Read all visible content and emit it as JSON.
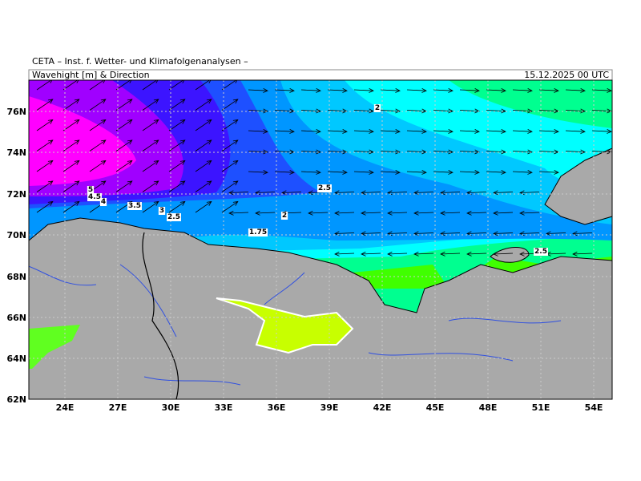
{
  "header": {
    "institute": "CETA – Inst. f. Wetter- und Klimafolgenanalysen –",
    "title": "Wavehight [m] & Direction",
    "datetime": "15.12.2025 00 UTC"
  },
  "map": {
    "lat_labels": [
      "76N",
      "74N",
      "72N",
      "70N",
      "68N",
      "66N",
      "64N",
      "62N"
    ],
    "lon_labels": [
      "24E",
      "27E",
      "30E",
      "33E",
      "36E",
      "39E",
      "42E",
      "45E",
      "48E",
      "51E",
      "54E"
    ],
    "contour_labels": [
      "2",
      "2.5",
      "2",
      "1.75",
      "5",
      "4.5",
      "4",
      "3.5",
      "3",
      "2.5",
      "2.5"
    ]
  }
}
